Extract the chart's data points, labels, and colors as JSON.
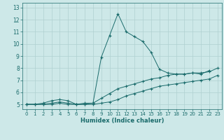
{
  "xlabel": "Humidex (Indice chaleur)",
  "bg_color": "#cde8e8",
  "line_color": "#1a6b6b",
  "grid_color": "#afd0d0",
  "xlim": [
    -0.5,
    23.5
  ],
  "ylim": [
    4.6,
    13.4
  ],
  "xticks": [
    0,
    1,
    2,
    3,
    4,
    5,
    6,
    7,
    8,
    9,
    10,
    11,
    12,
    13,
    14,
    15,
    16,
    17,
    18,
    19,
    20,
    21,
    22,
    23
  ],
  "yticks": [
    5,
    6,
    7,
    8,
    9,
    10,
    11,
    12,
    13
  ],
  "hours": [
    0,
    1,
    2,
    3,
    4,
    5,
    6,
    7,
    8,
    9,
    10,
    11,
    12,
    13,
    14,
    15,
    16,
    17,
    18,
    19,
    20,
    21,
    22,
    23
  ],
  "line_max": [
    5.0,
    5.0,
    5.1,
    5.3,
    5.4,
    5.3,
    5.0,
    5.1,
    5.1,
    8.9,
    10.7,
    12.5,
    11.0,
    10.6,
    10.2,
    9.3,
    7.9,
    7.6,
    7.5,
    7.5,
    7.6,
    7.5,
    7.8,
    null
  ],
  "line_mid": [
    5.0,
    5.0,
    5.0,
    5.1,
    5.2,
    5.1,
    5.0,
    5.0,
    5.1,
    5.5,
    5.9,
    6.3,
    6.5,
    6.7,
    6.9,
    7.1,
    7.2,
    7.4,
    7.5,
    7.5,
    7.6,
    7.6,
    7.7,
    8.0
  ],
  "line_min": [
    5.0,
    5.0,
    5.0,
    5.0,
    5.1,
    5.0,
    5.0,
    5.0,
    5.0,
    5.1,
    5.2,
    5.4,
    5.7,
    5.9,
    6.1,
    6.3,
    6.5,
    6.6,
    6.7,
    6.8,
    6.9,
    7.0,
    7.1,
    7.4
  ]
}
